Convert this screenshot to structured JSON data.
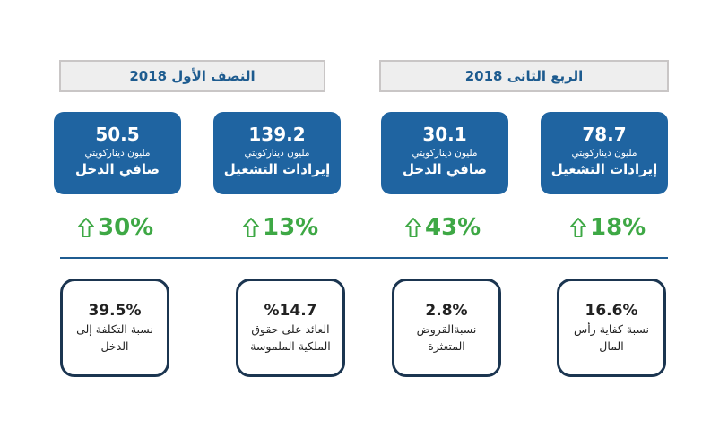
{
  "headers": {
    "h1_2018": "النصف الأول 2018",
    "q2_2018": "الربع الثانى 2018"
  },
  "kpis": [
    {
      "value": "50.5",
      "unit": "مليون ديناركويتي",
      "label": "صافي الدخل"
    },
    {
      "value": "139.2",
      "unit": "مليون ديناركويتي",
      "label": "إيرادات التشغيل"
    },
    {
      "value": "30.1",
      "unit": "مليون ديناركويتي",
      "label": "صافي الدخل"
    },
    {
      "value": "78.7",
      "unit": "مليون ديناركويتي",
      "label": "إيرادات التشغيل"
    }
  ],
  "growth": [
    "30%",
    "13%",
    "43%",
    "18%"
  ],
  "ratios": [
    {
      "value": "39.5%",
      "label_line1": "نسبة التكلفة إلى",
      "label_line2": "الدخل"
    },
    {
      "value": "%14.7",
      "label_line1": "العائد على حقوق",
      "label_line2": "الملكية الملموسة"
    },
    {
      "value": "2.8%",
      "label_line1": "نسبةالقروض",
      "label_line2": "المتعثرة"
    },
    {
      "value": "16.6%",
      "label_line1": "نسبة كفاية رأس",
      "label_line2": "المال"
    }
  ],
  "colors": {
    "kpi_box": "#1f64a1",
    "header_text": "#1d5b8f",
    "growth": "#3ea845",
    "ratio_border": "#1b3550",
    "divider": "#1f5c91"
  },
  "icons": {
    "growth": "up-arrow-icon"
  }
}
